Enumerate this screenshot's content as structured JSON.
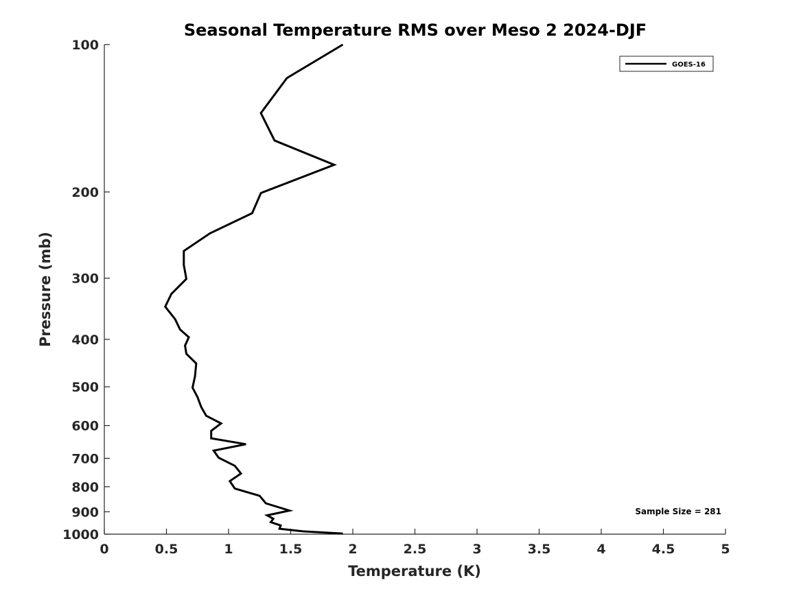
{
  "chart_data": {
    "type": "line",
    "title": "Seasonal Temperature RMS over Meso 2  2024-DJF",
    "xlabel": "Temperature (K)",
    "ylabel": "Pressure (mb)",
    "xlim": [
      0,
      5
    ],
    "ylim": [
      100,
      1000
    ],
    "yscale": "log",
    "y_reversed": true,
    "x_ticks": [
      0,
      0.5,
      1,
      1.5,
      2,
      2.5,
      3,
      3.5,
      4,
      4.5,
      5
    ],
    "x_tick_labels": [
      "0",
      "0.5",
      "1",
      "1.5",
      "2",
      "2.5",
      "3",
      "3.5",
      "4",
      "4.5",
      "5"
    ],
    "y_ticks": [
      100,
      200,
      300,
      400,
      500,
      600,
      700,
      800,
      900,
      1000
    ],
    "y_tick_labels": [
      "100",
      "200",
      "300",
      "400",
      "500",
      "600",
      "700",
      "800",
      "900",
      "1000"
    ],
    "grid": false,
    "legend_position": "top-right",
    "series": [
      {
        "name": "GOES-16",
        "color": "#000000",
        "x": [
          1.92,
          1.47,
          1.26,
          1.37,
          1.85,
          1.26,
          1.19,
          0.85,
          0.64,
          0.64,
          0.66,
          0.54,
          0.49,
          0.57,
          0.61,
          0.68,
          0.65,
          0.66,
          0.74,
          0.73,
          0.71,
          0.75,
          0.78,
          0.82,
          0.94,
          0.86,
          0.86,
          1.14,
          0.88,
          0.92,
          1.05,
          1.1,
          1.01,
          1.05,
          1.25,
          1.3,
          1.49,
          1.31,
          1.36,
          1.34,
          1.42,
          1.41,
          1.6,
          1.92
        ],
        "y": [
          100,
          117,
          138,
          157,
          176,
          201,
          221,
          243,
          264,
          282,
          301,
          323,
          343,
          364,
          382,
          396,
          412,
          428,
          448,
          476,
          502,
          525,
          550,
          573,
          594,
          615,
          637,
          655,
          675,
          698,
          725,
          752,
          779,
          807,
          835,
          865,
          895,
          915,
          930,
          945,
          960,
          975,
          987,
          997
        ]
      }
    ],
    "annotations": [
      "Sample Size = 281"
    ]
  }
}
